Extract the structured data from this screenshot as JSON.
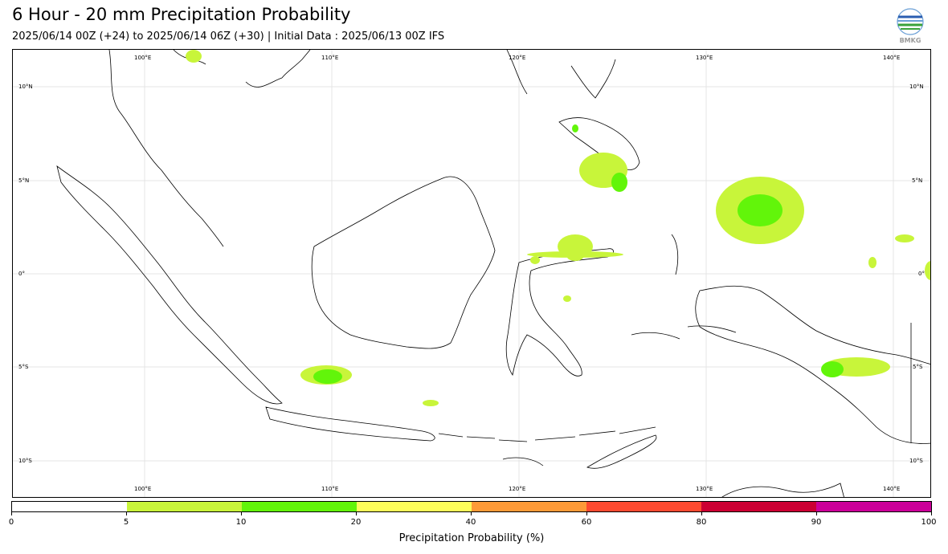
{
  "header": {
    "title": "6 Hour - 20 mm Precipitation Probability",
    "subtitle": "2025/06/14 00Z (+24) to 2025/06/14 06Z (+30) | Initial Data : 2025/06/13 00Z IFS",
    "logo_text": "BMKG"
  },
  "map": {
    "lon_labels": [
      "100°E",
      "110°E",
      "120°E",
      "130°E",
      "140°E"
    ],
    "lat_labels": [
      "10°N",
      "5°N",
      "0°",
      "5°S",
      "10°S"
    ],
    "land_color": "#000000",
    "gridlines": true
  },
  "colorbar": {
    "title": "Precipitation Probability (%)",
    "tick_labels": [
      "0",
      "5",
      "10",
      "20",
      "40",
      "60",
      "80",
      "90",
      "100"
    ],
    "colors": [
      "#ffffff",
      "#c8f53a",
      "#62f50a",
      "#fdfd5a",
      "#fd9a38",
      "#fd4a30",
      "#cc0033",
      "#cc0099"
    ]
  }
}
